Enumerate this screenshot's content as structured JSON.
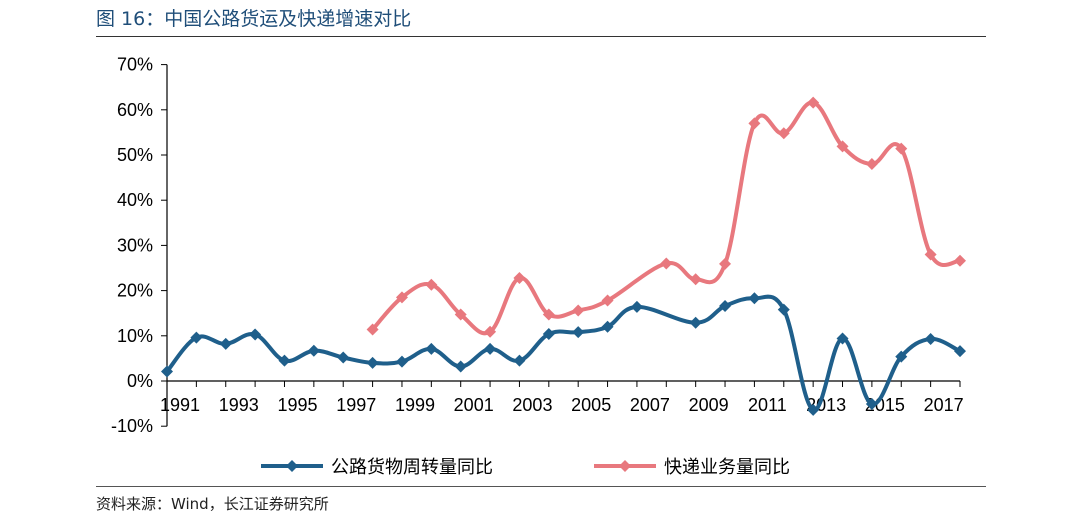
{
  "figure": {
    "title": "图 16：中国公路货运及快递增速对比",
    "source": "资料来源：Wind，长江证券研究所"
  },
  "chart_data": {
    "type": "line",
    "title": "",
    "xlabel": "",
    "ylabel": "",
    "ylim": [
      -10,
      70
    ],
    "y_ticks": [
      -10,
      0,
      10,
      20,
      30,
      40,
      50,
      60,
      70
    ],
    "y_tick_labels": [
      "-10%",
      "0%",
      "10%",
      "20%",
      "30%",
      "40%",
      "50%",
      "60%",
      "70%"
    ],
    "x_tick_labels": [
      "1991",
      "1993",
      "1995",
      "1997",
      "1999",
      "2001",
      "2003",
      "2005",
      "2007",
      "2009",
      "2011",
      "2013",
      "2015",
      "2017"
    ],
    "x": [
      1991,
      1992,
      1993,
      1994,
      1995,
      1996,
      1997,
      1998,
      1999,
      2000,
      2001,
      2002,
      2003,
      2004,
      2005,
      2006,
      2007,
      2008,
      2009,
      2010,
      2011,
      2012,
      2013,
      2014,
      2015,
      2016,
      2017,
      2018
    ],
    "legend_position": "bottom",
    "grid": false,
    "series": [
      {
        "name": "公路货物周转量同比",
        "color": "#1f5f8b",
        "marker": "diamond",
        "values": [
          2.1,
          9.6,
          8.2,
          10.3,
          4.5,
          6.7,
          5.2,
          4.0,
          4.3,
          7.1,
          3.2,
          7.1,
          4.5,
          10.4,
          10.8,
          12.0,
          16.4,
          null,
          12.9,
          16.6,
          18.3,
          15.8,
          -6.4,
          9.4,
          -5.1,
          5.4,
          9.3,
          6.6
        ]
      },
      {
        "name": "快递业务量同比",
        "color": "#e8787e",
        "marker": "diamond",
        "values": [
          null,
          null,
          null,
          null,
          null,
          null,
          null,
          11.4,
          18.5,
          21.3,
          14.7,
          10.9,
          22.8,
          14.7,
          15.6,
          17.8,
          null,
          26.0,
          22.5,
          25.9,
          57.0,
          54.8,
          61.6,
          51.9,
          48.0,
          51.4,
          28.0,
          26.6
        ]
      }
    ]
  }
}
